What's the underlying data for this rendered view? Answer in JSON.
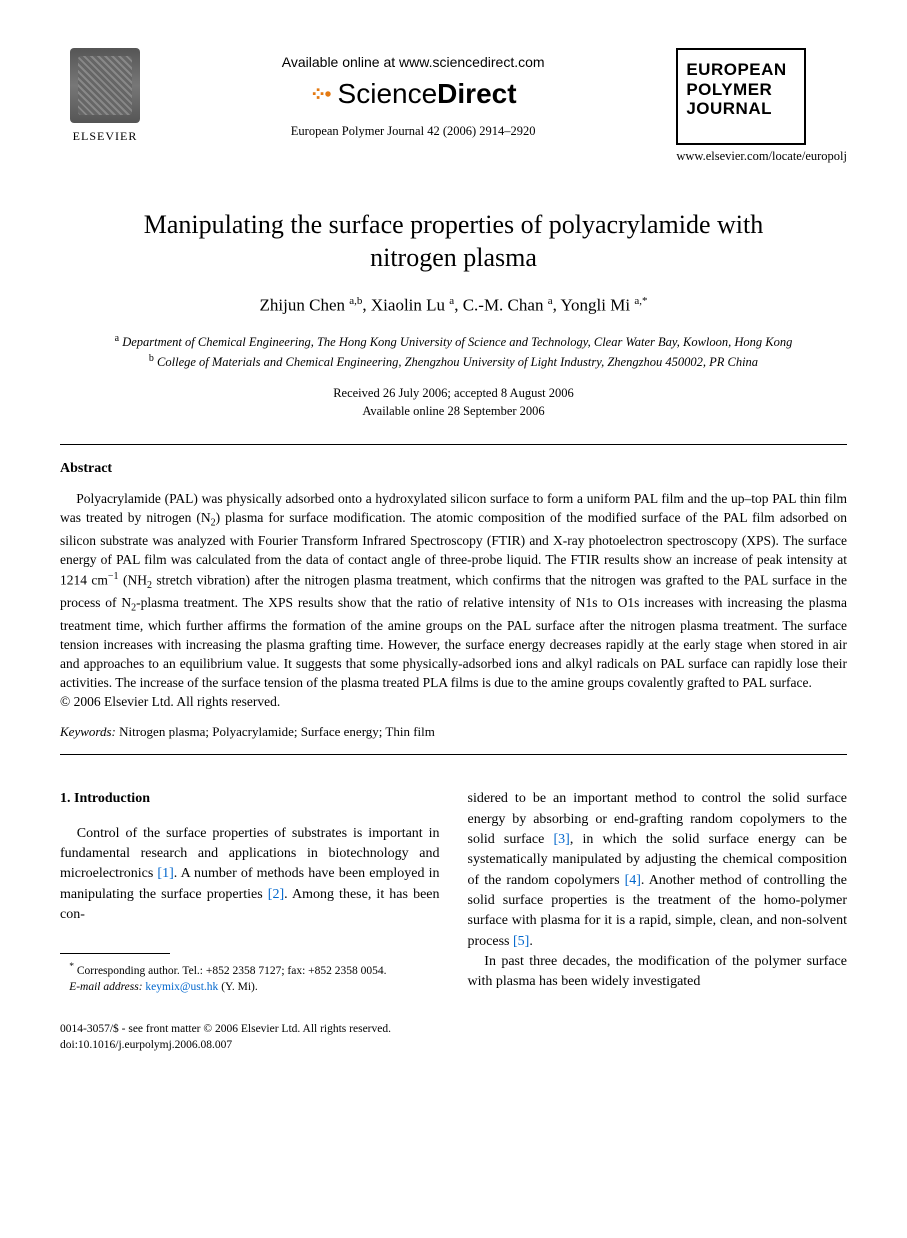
{
  "header": {
    "publisher_label": "ELSEVIER",
    "available_online": "Available online at www.sciencedirect.com",
    "sd_brand_light": "Science",
    "sd_brand_bold": "Direct",
    "citation": "European Polymer Journal 42 (2006) 2914–2920",
    "journal_box": {
      "line1": "EUROPEAN",
      "line2": "POLYMER",
      "line3": "JOURNAL"
    },
    "journal_url": "www.elsevier.com/locate/europolj"
  },
  "title": "Manipulating the surface properties of polyacrylamide with nitrogen plasma",
  "authors_html": "Zhijun Chen <sup>a,b</sup>, Xiaolin Lu <sup>a</sup>, C.-M. Chan <sup>a</sup>, Yongli Mi <sup>a,*</sup>",
  "affiliations": {
    "a": "Department of Chemical Engineering, The Hong Kong University of Science and Technology, Clear Water Bay, Kowloon, Hong Kong",
    "b": "College of Materials and Chemical Engineering, Zhengzhou University of Light Industry, Zhengzhou 450002, PR China"
  },
  "dates": {
    "line1": "Received 26 July 2006; accepted 8 August 2006",
    "line2": "Available online 28 September 2006"
  },
  "abstract": {
    "heading": "Abstract",
    "body_html": "Polyacrylamide (PAL) was physically adsorbed onto a hydroxylated silicon surface to form a uniform PAL film and the up–top PAL thin film was treated by nitrogen (N<sub>2</sub>) plasma for surface modification. The atomic composition of the modified surface of the PAL film adsorbed on silicon substrate was analyzed with Fourier Transform Infrared Spectroscopy (FTIR) and X-ray photoelectron spectroscopy (XPS). The surface energy of PAL film was calculated from the data of contact angle of three-probe liquid. The FTIR results show an increase of peak intensity at 1214 cm<sup>−1</sup> (NH<sub>2</sub> stretch vibration) after the nitrogen plasma treatment, which confirms that the nitrogen was grafted to the PAL surface in the process of N<sub>2</sub>-plasma treatment. The XPS results show that the ratio of relative intensity of N1s to O1s increases with increasing the plasma treatment time, which further affirms the formation of the amine groups on the PAL surface after the nitrogen plasma treatment. The surface tension increases with increasing the plasma grafting time. However, the surface energy decreases rapidly at the early stage when stored in air and approaches to an equilibrium value. It suggests that some physically-adsorbed ions and alkyl radicals on PAL surface can rapidly lose their activities. The increase of the surface tension of the plasma treated PLA films is due to the amine groups covalently grafted to PAL surface.",
    "copyright": "© 2006 Elsevier Ltd. All rights reserved."
  },
  "keywords": {
    "label": "Keywords:",
    "text": " Nitrogen plasma; Polyacrylamide; Surface energy; Thin film"
  },
  "section1": {
    "heading": "1. Introduction",
    "col_left_html": "Control of the surface properties of substrates is important in fundamental research and applications in biotechnology and microelectronics <span class=\"ref-link\">[1]</span>. A number of methods have been employed in manipulating the surface properties <span class=\"ref-link\">[2]</span>. Among these, it has been con-",
    "col_right_p1_html": "sidered to be an important method to control the solid surface energy by absorbing or end-grafting random copolymers to the solid surface <span class=\"ref-link\">[3]</span>, in which the solid surface energy can be systematically manipulated by adjusting the chemical composition of the random copolymers <span class=\"ref-link\">[4]</span>. Another method of controlling the solid surface properties is the treatment of the homo-polymer surface with plasma for it is a rapid, simple, clean, and non-solvent process <span class=\"ref-link\">[5]</span>.",
    "col_right_p2_html": "In past three decades, the modification of the polymer surface with plasma has been widely investigated"
  },
  "footnote": {
    "corresponding": "Corresponding author. Tel.: +852 2358 7127; fax: +852 2358 0054.",
    "email_label": "E-mail address:",
    "email": "keymix@ust.hk",
    "email_name": "(Y. Mi)."
  },
  "bottom": {
    "line1": "0014-3057/$ - see front matter © 2006 Elsevier Ltd. All rights reserved.",
    "line2": "doi:10.1016/j.eurpolymj.2006.08.007"
  }
}
